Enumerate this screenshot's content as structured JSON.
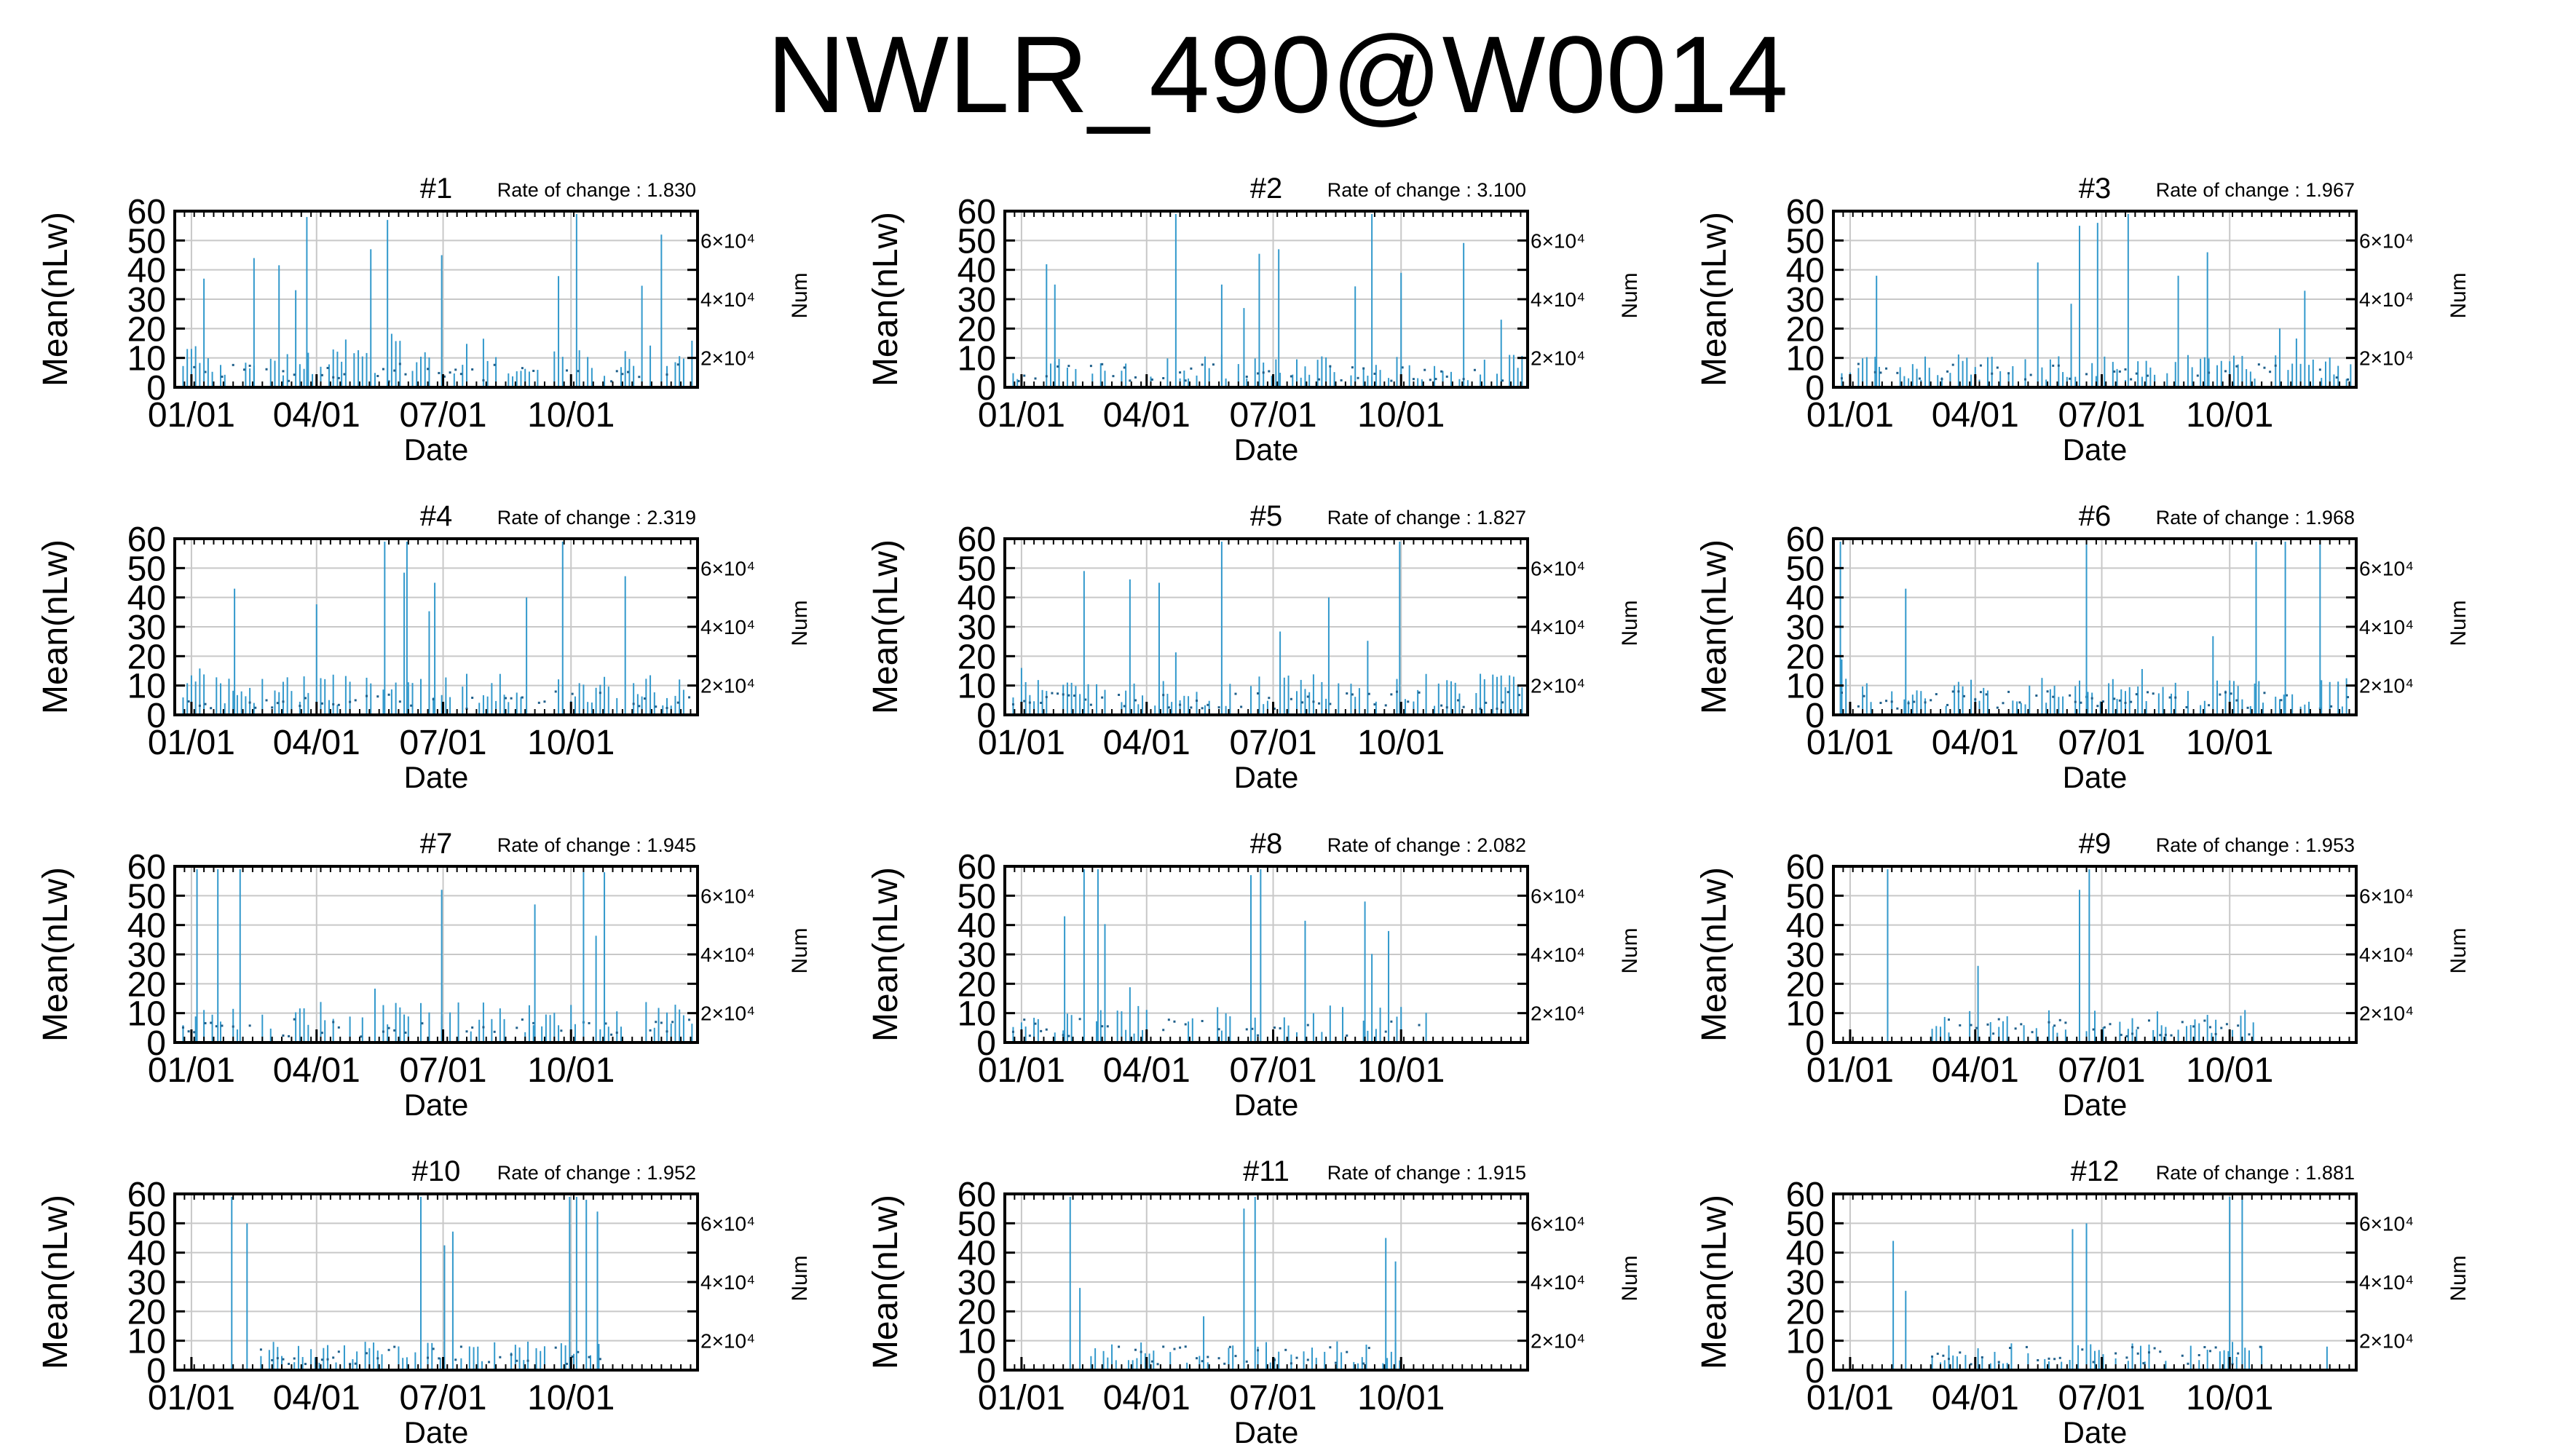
{
  "title": "NWLR_490@W0014",
  "colors": {
    "bar": "#3399cc",
    "grid": "#c8c8c8",
    "axis": "#000000",
    "dot": "#1f5f8a"
  },
  "chart_data": [
    {
      "type": "bar",
      "title": "#1",
      "rate_label": "Rate of change : 1.830",
      "xlabel": "Date",
      "ylabel": "Mean(nLw)",
      "y2label": "Num",
      "ylim": [
        0,
        60
      ],
      "yticks": [
        "0",
        "10",
        "20",
        "30",
        "40",
        "50",
        "60"
      ],
      "y2ticks": [
        "2×10⁴",
        "4×10⁴",
        "6×10⁴"
      ],
      "xticks": [
        "01/01",
        "04/01",
        "07/01",
        "10/01"
      ],
      "x_range": [
        "2001-12-20",
        "2002-12-31"
      ],
      "grid": true,
      "seed": 11,
      "density": 0.62,
      "base": 12,
      "spike_prob": 0.07,
      "values": [
        {
          "x": "2002-01-10",
          "y": 37
        },
        {
          "x": "2002-02-15",
          "y": 44
        },
        {
          "x": "2002-03-25",
          "y": 58
        },
        {
          "x": "2002-05-10",
          "y": 47
        },
        {
          "x": "2002-05-22",
          "y": 57
        },
        {
          "x": "2002-06-30",
          "y": 45
        },
        {
          "x": "2002-10-05",
          "y": 59
        },
        {
          "x": "2002-12-05",
          "y": 52
        }
      ]
    },
    {
      "type": "bar",
      "title": "#2",
      "rate_label": "Rate of change : 3.100",
      "xlabel": "Date",
      "ylabel": "Mean(nLw)",
      "y2label": "Num",
      "ylim": [
        0,
        60
      ],
      "yticks": [
        "0",
        "10",
        "20",
        "30",
        "40",
        "50",
        "60"
      ],
      "y2ticks": [
        "2×10⁴",
        "4×10⁴",
        "6×10⁴"
      ],
      "xticks": [
        "01/01",
        "04/01",
        "07/01",
        "10/01"
      ],
      "x_range": [
        "2001-12-20",
        "2002-12-31"
      ],
      "grid": true,
      "seed": 22,
      "density": 0.55,
      "base": 8,
      "spike_prob": 0.05,
      "values": [
        {
          "x": "2002-01-25",
          "y": 35
        },
        {
          "x": "2002-04-22",
          "y": 59
        },
        {
          "x": "2002-05-25",
          "y": 35
        },
        {
          "x": "2002-06-10",
          "y": 27
        },
        {
          "x": "2002-07-05",
          "y": 47
        },
        {
          "x": "2002-09-10",
          "y": 59
        },
        {
          "x": "2002-10-01",
          "y": 39
        }
      ]
    },
    {
      "type": "bar",
      "title": "#3",
      "rate_label": "Rate of change : 1.967",
      "xlabel": "Date",
      "ylabel": "Mean(nLw)",
      "y2label": "Num",
      "ylim": [
        0,
        60
      ],
      "yticks": [
        "0",
        "10",
        "20",
        "30",
        "40",
        "50",
        "60"
      ],
      "y2ticks": [
        "2×10⁴",
        "4×10⁴",
        "6×10⁴"
      ],
      "xticks": [
        "01/01",
        "04/01",
        "07/01",
        "10/01"
      ],
      "x_range": [
        "2001-12-20",
        "2002-12-31"
      ],
      "grid": true,
      "seed": 33,
      "density": 0.55,
      "base": 8,
      "spike_prob": 0.06,
      "values": [
        {
          "x": "2002-01-20",
          "y": 38
        },
        {
          "x": "2002-06-15",
          "y": 55
        },
        {
          "x": "2002-06-28",
          "y": 56
        },
        {
          "x": "2002-07-20",
          "y": 59
        },
        {
          "x": "2002-08-25",
          "y": 38
        },
        {
          "x": "2002-09-15",
          "y": 46
        }
      ]
    },
    {
      "type": "bar",
      "title": "#4",
      "rate_label": "Rate of change : 2.319",
      "xlabel": "Date",
      "ylabel": "Mean(nLw)",
      "y2label": "Num",
      "ylim": [
        0,
        60
      ],
      "yticks": [
        "0",
        "10",
        "20",
        "30",
        "40",
        "50",
        "60"
      ],
      "y2ticks": [
        "2×10⁴",
        "4×10⁴",
        "6×10⁴"
      ],
      "xticks": [
        "01/01",
        "04/01",
        "07/01",
        "10/01"
      ],
      "x_range": [
        "2001-12-20",
        "2002-12-31"
      ],
      "grid": true,
      "seed": 44,
      "density": 0.65,
      "base": 10,
      "spike_prob": 0.06,
      "values": [
        {
          "x": "2002-02-01",
          "y": 43
        },
        {
          "x": "2002-05-20",
          "y": 59
        },
        {
          "x": "2002-06-05",
          "y": 59
        },
        {
          "x": "2002-06-25",
          "y": 45
        },
        {
          "x": "2002-08-30",
          "y": 40
        },
        {
          "x": "2002-09-25",
          "y": 59
        }
      ]
    },
    {
      "type": "bar",
      "title": "#5",
      "rate_label": "Rate of change : 1.827",
      "xlabel": "Date",
      "ylabel": "Mean(nLw)",
      "y2label": "Num",
      "ylim": [
        0,
        60
      ],
      "yticks": [
        "0",
        "10",
        "20",
        "30",
        "40",
        "50",
        "60"
      ],
      "y2ticks": [
        "2×10⁴",
        "4×10⁴",
        "6×10⁴"
      ],
      "xticks": [
        "01/01",
        "04/01",
        "07/01",
        "10/01"
      ],
      "x_range": [
        "2001-12-20",
        "2002-12-31"
      ],
      "grid": true,
      "seed": 55,
      "density": 0.6,
      "base": 10,
      "spike_prob": 0.06,
      "values": [
        {
          "x": "2002-02-15",
          "y": 49
        },
        {
          "x": "2002-04-10",
          "y": 45
        },
        {
          "x": "2002-05-25",
          "y": 59
        },
        {
          "x": "2002-08-10",
          "y": 40
        },
        {
          "x": "2002-09-30",
          "y": 59
        }
      ]
    },
    {
      "type": "bar",
      "title": "#6",
      "rate_label": "Rate of change : 1.968",
      "xlabel": "Date",
      "ylabel": "Mean(nLw)",
      "y2label": "Num",
      "ylim": [
        0,
        60
      ],
      "yticks": [
        "0",
        "10",
        "20",
        "30",
        "40",
        "50",
        "60"
      ],
      "y2ticks": [
        "2×10⁴",
        "4×10⁴",
        "6×10⁴"
      ],
      "xticks": [
        "01/01",
        "04/01",
        "07/01",
        "10/01"
      ],
      "x_range": [
        "2001-12-20",
        "2002-12-31"
      ],
      "grid": true,
      "seed": 66,
      "density": 0.6,
      "base": 9,
      "spike_prob": 0.06,
      "values": [
        {
          "x": "2001-12-25",
          "y": 59
        },
        {
          "x": "2002-02-10",
          "y": 43
        },
        {
          "x": "2002-06-20",
          "y": 59
        },
        {
          "x": "2002-10-20",
          "y": 59
        },
        {
          "x": "2002-11-10",
          "y": 59
        },
        {
          "x": "2002-12-05",
          "y": 59
        }
      ]
    },
    {
      "type": "bar",
      "title": "#7",
      "rate_label": "Rate of change : 1.945",
      "xlabel": "Date",
      "ylabel": "Mean(nLw)",
      "y2label": "Num",
      "ylim": [
        0,
        60
      ],
      "yticks": [
        "0",
        "10",
        "20",
        "30",
        "40",
        "50",
        "60"
      ],
      "y2ticks": [
        "2×10⁴",
        "4×10⁴",
        "6×10⁴"
      ],
      "xticks": [
        "01/01",
        "04/01",
        "07/01",
        "10/01"
      ],
      "x_range": [
        "2001-12-20",
        "2002-12-31"
      ],
      "grid": true,
      "seed": 77,
      "density": 0.5,
      "base": 10,
      "spike_prob": 0.05,
      "values": [
        {
          "x": "2002-01-05",
          "y": 59
        },
        {
          "x": "2002-01-20",
          "y": 59
        },
        {
          "x": "2002-02-05",
          "y": 59
        },
        {
          "x": "2002-06-30",
          "y": 52
        },
        {
          "x": "2002-09-05",
          "y": 47
        },
        {
          "x": "2002-10-10",
          "y": 58
        },
        {
          "x": "2002-10-25",
          "y": 58
        }
      ]
    },
    {
      "type": "bar",
      "title": "#8",
      "rate_label": "Rate of change : 2.082",
      "xlabel": "Date",
      "ylabel": "Mean(nLw)",
      "y2label": "Num",
      "ylim": [
        0,
        60
      ],
      "yticks": [
        "0",
        "10",
        "20",
        "30",
        "40",
        "50",
        "60"
      ],
      "y2ticks": [
        "2×10⁴",
        "4×10⁴",
        "6×10⁴"
      ],
      "xticks": [
        "01/01",
        "04/01",
        "07/01",
        "10/01"
      ],
      "x_range": [
        "2001-12-20",
        "2002-12-31"
      ],
      "grid": true,
      "seed": 88,
      "density": 0.45,
      "base": 9,
      "spike_prob": 0.04,
      "end": "2002-10-20",
      "values": [
        {
          "x": "2002-02-01",
          "y": 43
        },
        {
          "x": "2002-02-15",
          "y": 59
        },
        {
          "x": "2002-02-25",
          "y": 59
        },
        {
          "x": "2002-06-15",
          "y": 57
        },
        {
          "x": "2002-06-22",
          "y": 59
        },
        {
          "x": "2002-09-05",
          "y": 48
        }
      ]
    },
    {
      "type": "bar",
      "title": "#9",
      "rate_label": "Rate of change : 1.953",
      "xlabel": "Date",
      "ylabel": "Mean(nLw)",
      "y2label": "Num",
      "ylim": [
        0,
        60
      ],
      "yticks": [
        "0",
        "10",
        "20",
        "30",
        "40",
        "50",
        "60"
      ],
      "y2ticks": [
        "2×10⁴",
        "4×10⁴",
        "6×10⁴"
      ],
      "xticks": [
        "01/01",
        "04/01",
        "07/01",
        "10/01"
      ],
      "x_range": [
        "2001-12-20",
        "2002-12-31"
      ],
      "grid": true,
      "seed": 99,
      "density": 0.5,
      "base": 8,
      "start": "2002-03-01",
      "end": "2002-10-20",
      "spike_prob": 0.03,
      "values": [
        {
          "x": "2002-01-28",
          "y": 59
        },
        {
          "x": "2002-06-15",
          "y": 52
        },
        {
          "x": "2002-06-22",
          "y": 59
        }
      ]
    },
    {
      "type": "bar",
      "title": "#10",
      "rate_label": "Rate of change : 1.952",
      "xlabel": "Date",
      "ylabel": "Mean(nLw)",
      "y2label": "Num",
      "ylim": [
        0,
        60
      ],
      "yticks": [
        "0",
        "10",
        "20",
        "30",
        "40",
        "50",
        "60"
      ],
      "y2ticks": [
        "2×10⁴",
        "4×10⁴",
        "6×10⁴"
      ],
      "xticks": [
        "01/01",
        "04/01",
        "07/01",
        "10/01"
      ],
      "x_range": [
        "2001-12-20",
        "2002-12-31"
      ],
      "grid": true,
      "seed": 111,
      "density": 0.55,
      "base": 7,
      "start": "2002-02-20",
      "end": "2002-10-25",
      "spike_prob": 0.03,
      "values": [
        {
          "x": "2002-01-30",
          "y": 59
        },
        {
          "x": "2002-02-10",
          "y": 50
        },
        {
          "x": "2002-06-15",
          "y": 59
        },
        {
          "x": "2002-09-30",
          "y": 59
        },
        {
          "x": "2002-10-05",
          "y": 59
        },
        {
          "x": "2002-10-12",
          "y": 58
        },
        {
          "x": "2002-10-20",
          "y": 54
        }
      ]
    },
    {
      "type": "bar",
      "title": "#11",
      "rate_label": "Rate of change : 1.915",
      "xlabel": "Date",
      "ylabel": "Mean(nLw)",
      "y2label": "Num",
      "ylim": [
        0,
        60
      ],
      "yticks": [
        "0",
        "10",
        "20",
        "30",
        "40",
        "50",
        "60"
      ],
      "y2ticks": [
        "2×10⁴",
        "4×10⁴",
        "6×10⁴"
      ],
      "xticks": [
        "01/01",
        "04/01",
        "07/01",
        "10/01"
      ],
      "x_range": [
        "2001-12-20",
        "2002-12-31"
      ],
      "grid": true,
      "seed": 122,
      "density": 0.55,
      "base": 7,
      "start": "2002-02-20",
      "end": "2002-10-01",
      "spike_prob": 0.03,
      "values": [
        {
          "x": "2002-02-05",
          "y": 59
        },
        {
          "x": "2002-02-12",
          "y": 28
        },
        {
          "x": "2002-06-10",
          "y": 55
        },
        {
          "x": "2002-06-18",
          "y": 59
        },
        {
          "x": "2002-09-20",
          "y": 45
        },
        {
          "x": "2002-09-27",
          "y": 37
        }
      ]
    },
    {
      "type": "bar",
      "title": "#12",
      "rate_label": "Rate of change : 1.881",
      "xlabel": "Date",
      "ylabel": "Mean(nLw)",
      "y2label": "Num",
      "ylim": [
        0,
        60
      ],
      "yticks": [
        "0",
        "10",
        "20",
        "30",
        "40",
        "50",
        "60"
      ],
      "y2ticks": [
        "2×10⁴",
        "4×10⁴",
        "6×10⁴"
      ],
      "xticks": [
        "01/01",
        "04/01",
        "07/01",
        "10/01"
      ],
      "x_range": [
        "2001-12-20",
        "2002-12-31"
      ],
      "grid": true,
      "seed": 133,
      "density": 0.5,
      "base": 7,
      "start": "2002-03-01",
      "end": "2002-10-25",
      "spike_prob": 0.03,
      "values": [
        {
          "x": "2002-02-01",
          "y": 44
        },
        {
          "x": "2002-02-10",
          "y": 27
        },
        {
          "x": "2002-06-10",
          "y": 48
        },
        {
          "x": "2002-06-20",
          "y": 50
        },
        {
          "x": "2002-10-01",
          "y": 59
        },
        {
          "x": "2002-10-10",
          "y": 59
        },
        {
          "x": "2002-12-10",
          "y": 8
        }
      ]
    }
  ]
}
